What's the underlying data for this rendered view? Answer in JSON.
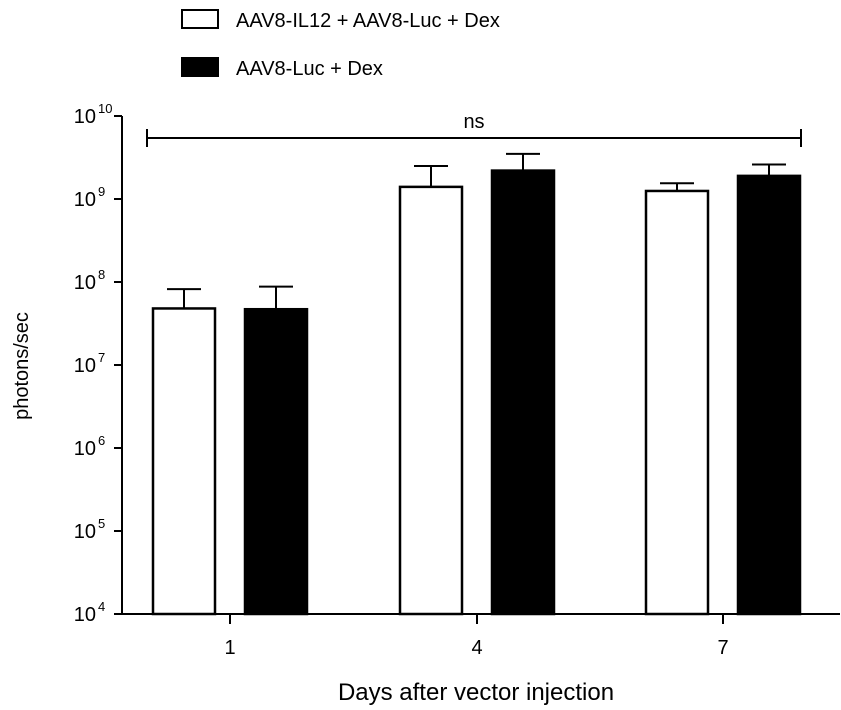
{
  "chart_data": {
    "type": "bar",
    "title": "",
    "xlabel": "Days after vector injection",
    "ylabel": "photons/sec",
    "yscale": "log",
    "ylim": [
      10000,
      10000000000
    ],
    "yticks": [
      {
        "value": 10000,
        "base": "10",
        "exp": "4"
      },
      {
        "value": 100000,
        "base": "10",
        "exp": "5"
      },
      {
        "value": 1000000,
        "base": "10",
        "exp": "6"
      },
      {
        "value": 10000000,
        "base": "10",
        "exp": "7"
      },
      {
        "value": 100000000,
        "base": "10",
        "exp": "8"
      },
      {
        "value": 1000000000,
        "base": "10",
        "exp": "9"
      },
      {
        "value": 10000000000,
        "base": "10",
        "exp": "10"
      }
    ],
    "categories": [
      "1",
      "4",
      "7"
    ],
    "series": [
      {
        "name": "AAV8-IL12 + AAV8-Luc + Dex",
        "fill": "#ffffff",
        "values": [
          48000000,
          1400000000,
          1250000000
        ],
        "error_upper": [
          82000000,
          2500000000,
          1550000000
        ]
      },
      {
        "name": "AAV8-Luc + Dex",
        "fill": "#000000",
        "values": [
          47000000,
          2200000000,
          1900000000
        ],
        "error_upper": [
          88000000,
          3500000000,
          2600000000
        ]
      }
    ],
    "legend_position": "top-left",
    "grid": false,
    "annotation": {
      "label": "ns",
      "spans_categories": [
        "1",
        "7"
      ]
    }
  }
}
